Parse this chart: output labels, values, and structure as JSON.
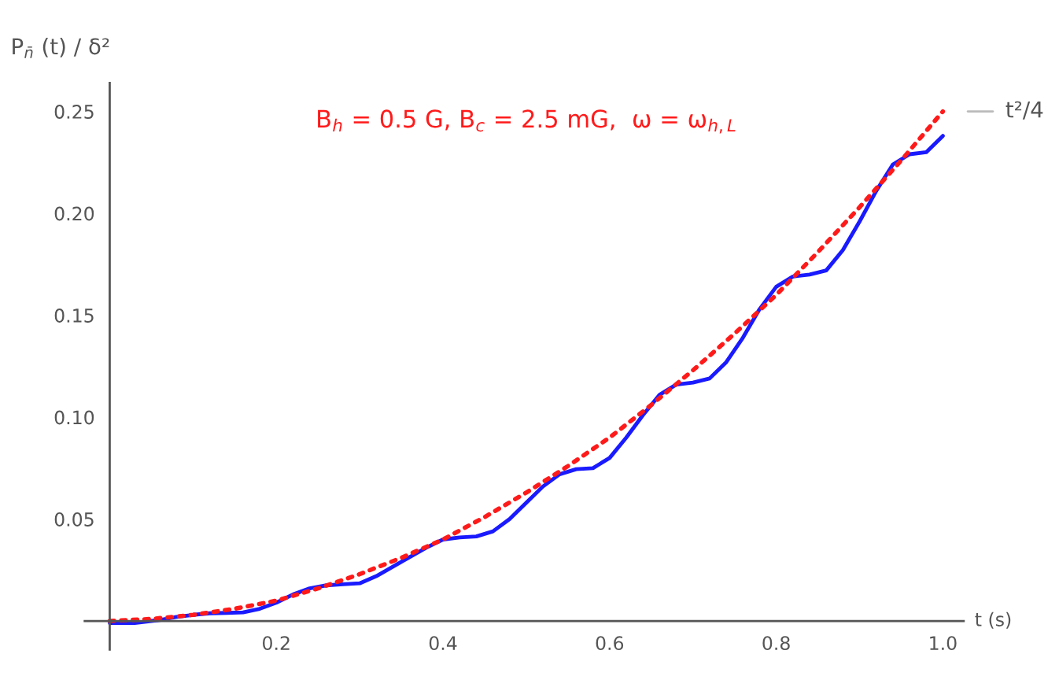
{
  "chart_data": {
    "type": "line",
    "ylabel": "P$_{n̄}$ (t) / δ²",
    "xlabel": "t (s)",
    "annotations": [
      "B$_{h}$ = 0.5 G, B$_{c}$ = 2.5 mG,  ω = ω$_{h,L}$"
    ],
    "xlim": [
      -0.03,
      1.025
    ],
    "ylim": [
      -0.014,
      0.264
    ],
    "xticks": [
      0.2,
      0.4,
      0.6,
      0.8,
      {
        "value": 1.0,
        "label": "1.0"
      }
    ],
    "yticks": [
      0.05,
      {
        "value": 0.1,
        "label": "0.10"
      },
      0.15,
      {
        "value": 0.2,
        "label": "0.20"
      },
      0.25
    ],
    "grid": false,
    "legend": false,
    "series": [
      {
        "color": "#1a1aff",
        "line_style": "solid",
        "x": [
          0,
          0.03,
          0.06,
          0.08,
          0.1,
          0.12,
          0.14,
          0.16,
          0.18,
          0.2,
          0.22,
          0.24,
          0.26,
          0.28,
          0.3,
          0.32,
          0.35,
          0.38,
          0.4,
          0.42,
          0.44,
          0.46,
          0.48,
          0.5,
          0.52,
          0.54,
          0.56,
          0.58,
          0.6,
          0.62,
          0.64,
          0.66,
          0.68,
          0.7,
          0.72,
          0.74,
          0.76,
          0.78,
          0.8,
          0.82,
          0.84,
          0.86,
          0.88,
          0.9,
          0.92,
          0.94,
          0.96,
          0.98,
          1.0
        ],
        "values": [
          -0.001,
          -0.001,
          0.0005,
          0.002,
          0.003,
          0.0038,
          0.004,
          0.0042,
          0.006,
          0.009,
          0.013,
          0.016,
          0.0175,
          0.018,
          0.0185,
          0.022,
          0.029,
          0.036,
          0.04,
          0.041,
          0.0415,
          0.044,
          0.05,
          0.058,
          0.066,
          0.072,
          0.0745,
          0.075,
          0.08,
          0.09,
          0.101,
          0.111,
          0.116,
          0.117,
          0.119,
          0.127,
          0.139,
          0.153,
          0.164,
          0.169,
          0.17,
          0.172,
          0.182,
          0.196,
          0.211,
          0.224,
          0.229,
          0.23,
          0.238
        ]
      },
      {
        "name": "t²/4",
        "color": "#ff1a1a",
        "line_style": "dotted",
        "x": [
          0,
          0.05,
          0.1,
          0.15,
          0.2,
          0.25,
          0.3,
          0.35,
          0.4,
          0.45,
          0.5,
          0.55,
          0.6,
          0.65,
          0.7,
          0.75,
          0.8,
          0.85,
          0.9,
          0.95,
          1.0
        ],
        "values": [
          0,
          0.001,
          0.003,
          0.006,
          0.01,
          0.016,
          0.023,
          0.031,
          0.04,
          0.051,
          0.063,
          0.076,
          0.09,
          0.106,
          0.123,
          0.141,
          0.16,
          0.181,
          0.203,
          0.226,
          0.25
        ]
      }
    ]
  }
}
